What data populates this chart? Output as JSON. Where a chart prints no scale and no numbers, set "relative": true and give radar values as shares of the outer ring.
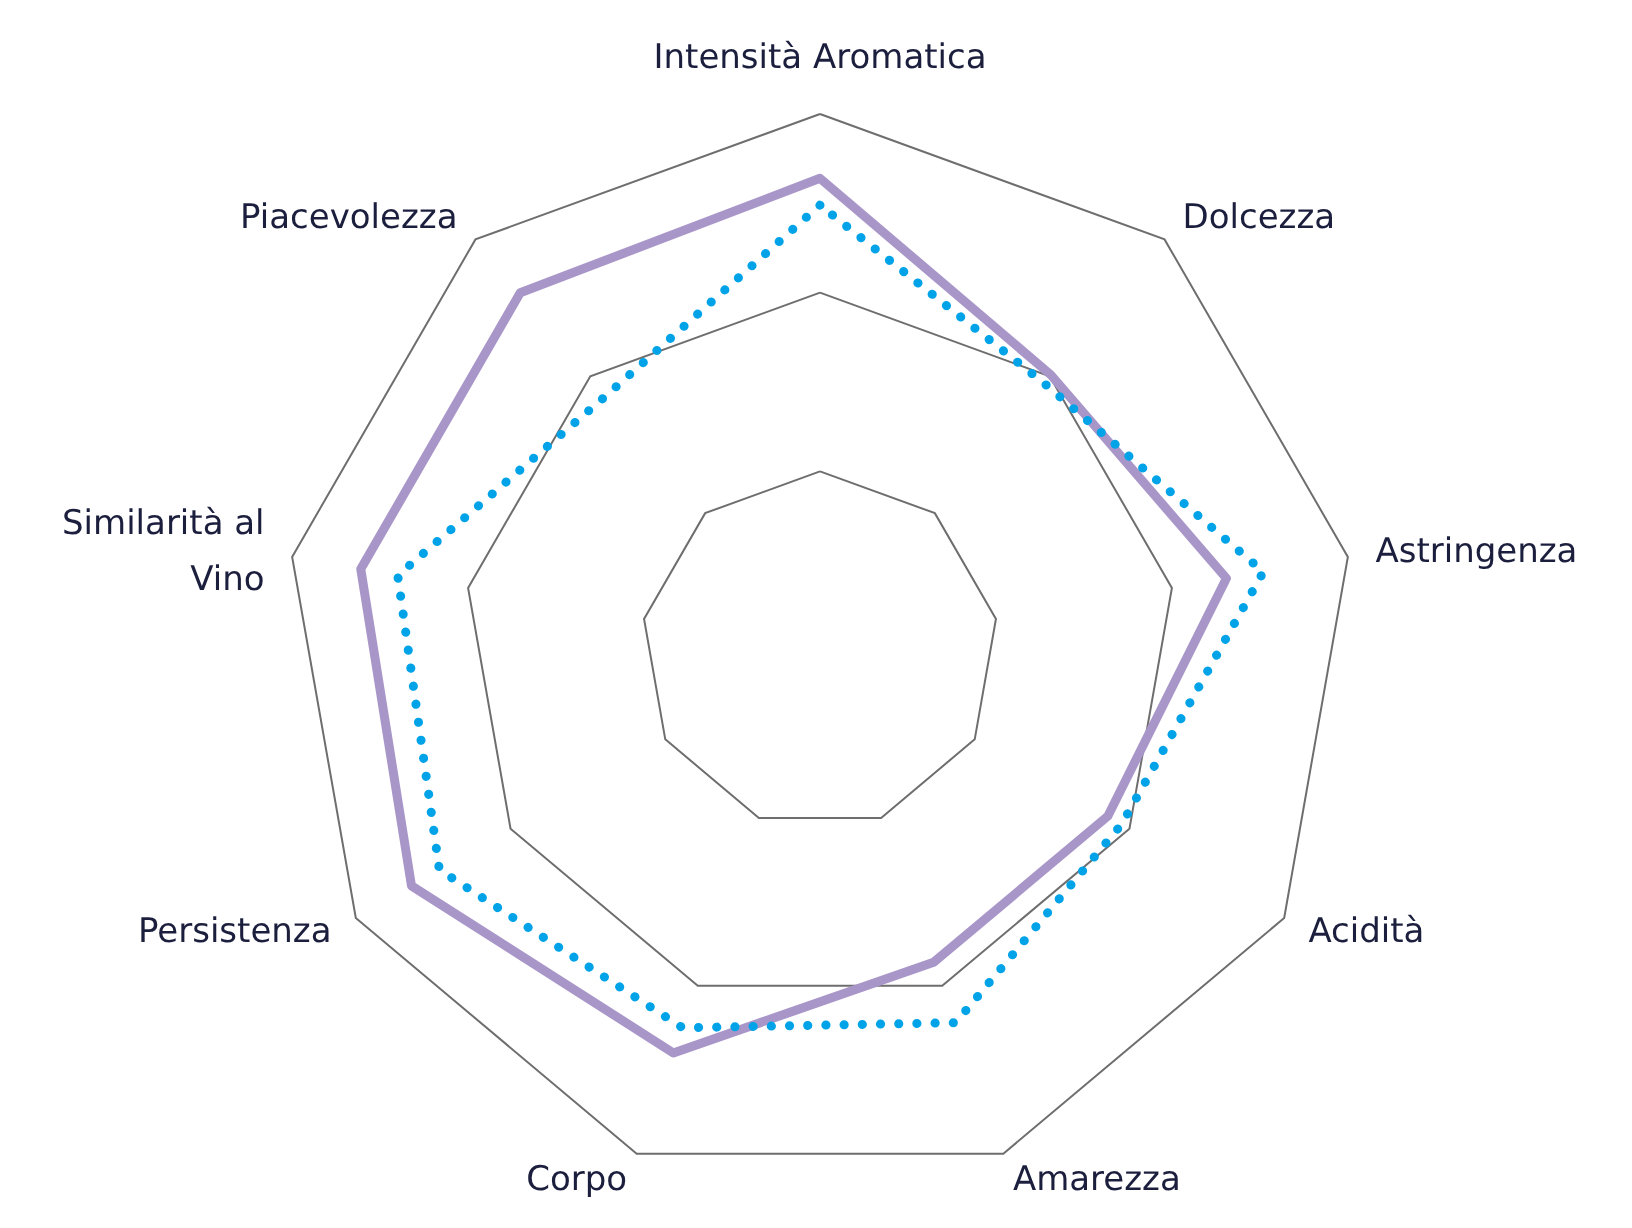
{
  "chart_data": {
    "type": "radar",
    "relative": true,
    "marker": "none",
    "categories": [
      "Intensità Aromatica",
      "Dolcezza",
      "Astringenza",
      "Acidità",
      "Amarezza",
      "Corpo",
      "Persistenza",
      "Similarità al Vino",
      "Piacevolezza"
    ],
    "series": [
      {
        "color": "#a996c9",
        "line_style": "solid",
        "values": [
          0.88,
          0.67,
          0.77,
          0.62,
          0.62,
          0.8,
          0.88,
          0.87,
          0.87
        ]
      },
      {
        "color": "#00a3e8",
        "line_style": "dotted",
        "values": [
          0.83,
          0.65,
          0.84,
          0.65,
          0.74,
          0.75,
          0.82,
          0.8,
          0.62
        ]
      }
    ]
  }
}
